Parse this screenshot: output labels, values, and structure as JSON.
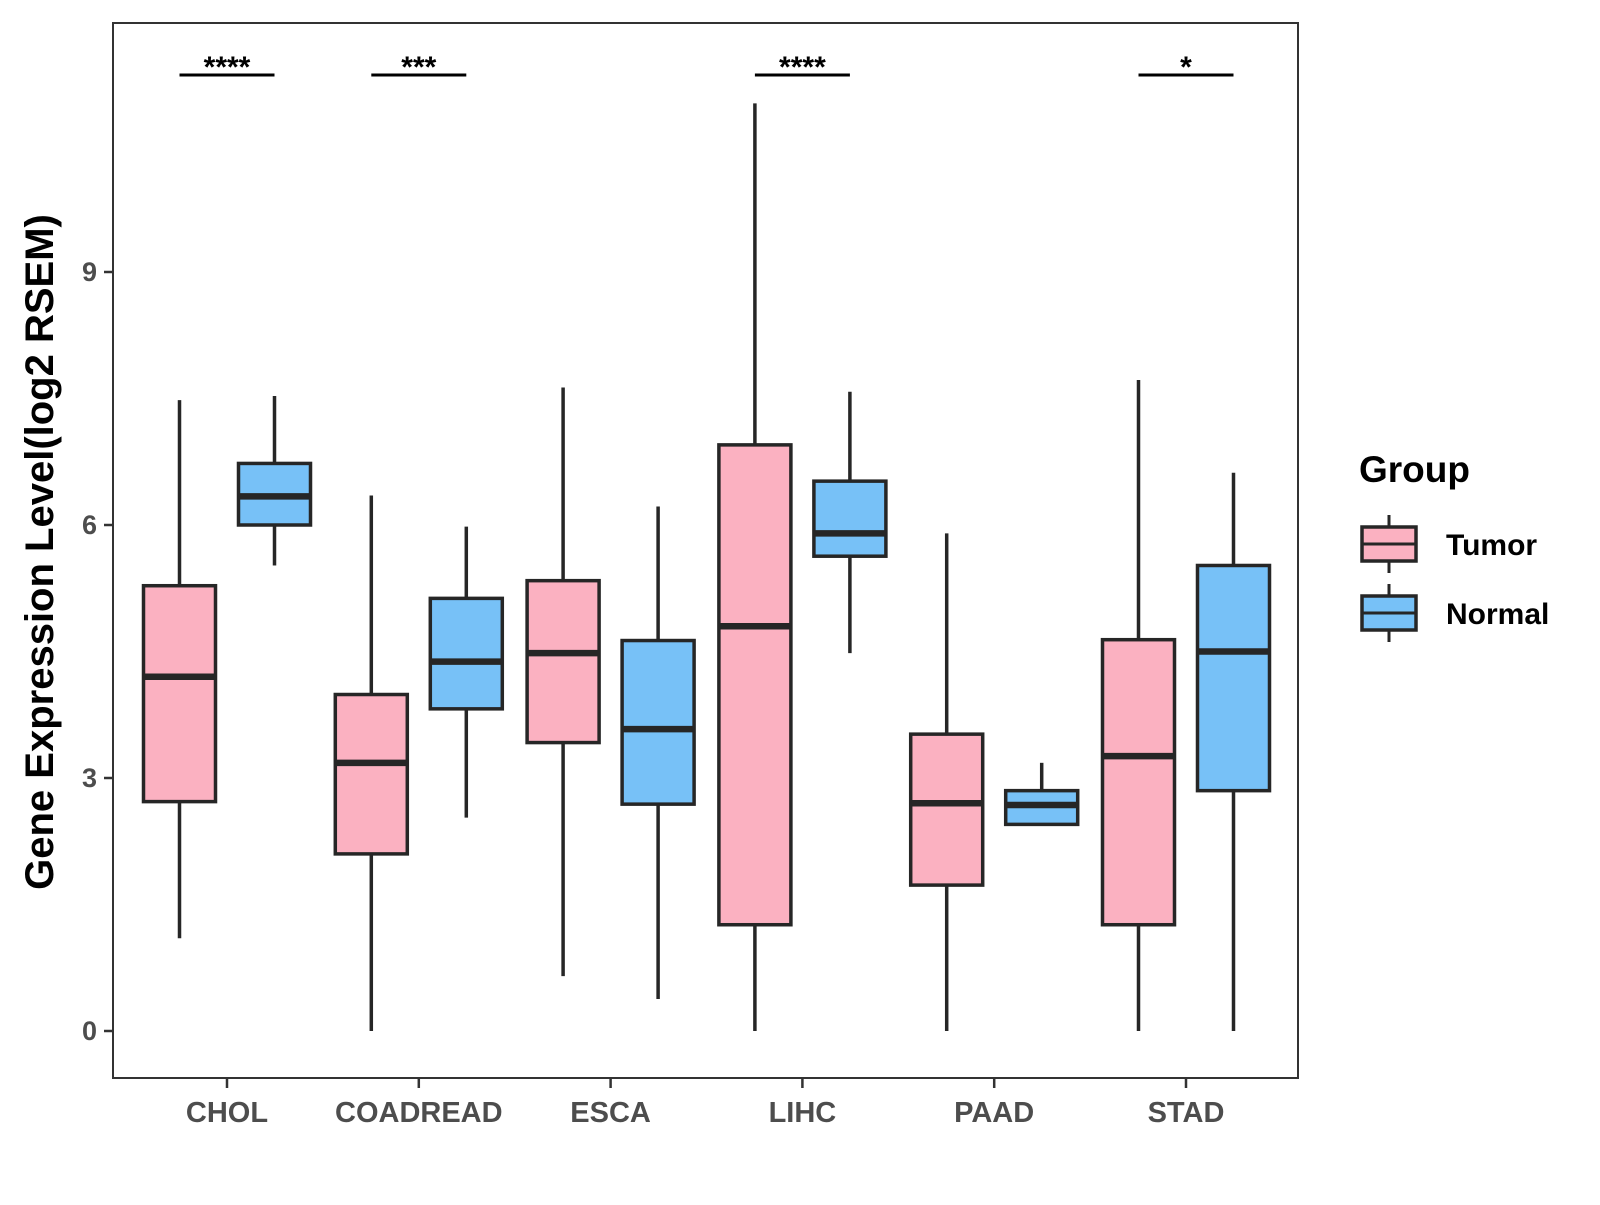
{
  "chart_data": {
    "type": "boxplot",
    "title": "",
    "xlabel": "",
    "ylabel": "Gene Expression Level(log2 RSEM)",
    "ylim": [
      -0.55,
      11.95
    ],
    "yticks": [
      0,
      3,
      6,
      9
    ],
    "grid": false,
    "legend": {
      "title": "Group",
      "position": "right",
      "entries": [
        "Tumor",
        "Normal"
      ]
    },
    "categories": [
      "CHOL",
      "COADREAD",
      "ESCA",
      "LIHC",
      "PAAD",
      "STAD"
    ],
    "colors": {
      "Tumor": "#fbb1c1",
      "Normal": "#77c1f7",
      "outline": "#262626"
    },
    "series": [
      {
        "name": "Tumor",
        "boxes": [
          {
            "min": 1.1,
            "q1": 2.72,
            "median": 4.2,
            "q3": 5.28,
            "max": 7.48
          },
          {
            "min": 0.0,
            "q1": 2.1,
            "median": 3.18,
            "q3": 3.99,
            "max": 6.35
          },
          {
            "min": 0.65,
            "q1": 3.42,
            "median": 4.48,
            "q3": 5.34,
            "max": 7.63
          },
          {
            "min": 0.0,
            "q1": 1.26,
            "median": 4.8,
            "q3": 6.95,
            "max": 11.0
          },
          {
            "min": 0.0,
            "q1": 1.73,
            "median": 2.7,
            "q3": 3.52,
            "max": 5.9
          },
          {
            "min": 0.0,
            "q1": 1.26,
            "median": 3.26,
            "q3": 4.64,
            "max": 7.72
          }
        ]
      },
      {
        "name": "Normal",
        "boxes": [
          {
            "min": 5.52,
            "q1": 6.0,
            "median": 6.34,
            "q3": 6.73,
            "max": 7.53
          },
          {
            "min": 2.53,
            "q1": 3.82,
            "median": 4.38,
            "q3": 5.13,
            "max": 5.98
          },
          {
            "min": 0.38,
            "q1": 2.69,
            "median": 3.58,
            "q3": 4.63,
            "max": 6.22
          },
          {
            "min": 4.48,
            "q1": 5.63,
            "median": 5.9,
            "q3": 6.52,
            "max": 7.58
          },
          {
            "min": 2.45,
            "q1": 2.45,
            "median": 2.68,
            "q3": 2.85,
            "max": 3.18
          },
          {
            "min": 0.0,
            "q1": 2.85,
            "median": 4.5,
            "q3": 5.52,
            "max": 6.62
          }
        ]
      }
    ],
    "significance": [
      "****",
      "***",
      "",
      "****",
      "",
      "*"
    ]
  }
}
